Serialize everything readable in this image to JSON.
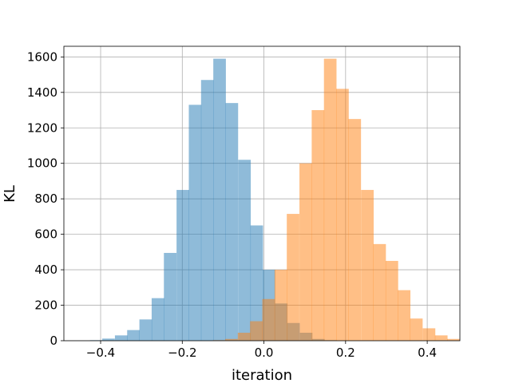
{
  "chart_data": {
    "type": "bar",
    "title": "",
    "xlabel": "iteration",
    "ylabel": "KL",
    "xlim": [
      -0.49,
      0.48
    ],
    "ylim": [
      0,
      1660
    ],
    "grid": true,
    "legend": "none",
    "x_ticks": [
      -0.4,
      -0.2,
      0.0,
      0.2,
      0.4
    ],
    "x_tick_labels": [
      "−0.4",
      "−0.2",
      "0.0",
      "0.2",
      "0.4"
    ],
    "y_ticks": [
      0,
      200,
      400,
      600,
      800,
      1000,
      1200,
      1400,
      1600
    ],
    "y_tick_labels": [
      "0",
      "200",
      "400",
      "600",
      "800",
      "1000",
      "1200",
      "1400",
      "1600"
    ],
    "series": [
      {
        "color": "#1f77b4",
        "opacity": 0.5,
        "bin_width": 0.0302,
        "bins": [
          {
            "x0": -0.426,
            "count": 3
          },
          {
            "x0": -0.396,
            "count": 12
          },
          {
            "x0": -0.365,
            "count": 30
          },
          {
            "x0": -0.335,
            "count": 60
          },
          {
            "x0": -0.305,
            "count": 120
          },
          {
            "x0": -0.275,
            "count": 240
          },
          {
            "x0": -0.245,
            "count": 495
          },
          {
            "x0": -0.214,
            "count": 850
          },
          {
            "x0": -0.184,
            "count": 1330
          },
          {
            "x0": -0.154,
            "count": 1470
          },
          {
            "x0": -0.124,
            "count": 1590
          },
          {
            "x0": -0.094,
            "count": 1340
          },
          {
            "x0": -0.063,
            "count": 1020
          },
          {
            "x0": -0.033,
            "count": 650
          },
          {
            "x0": -0.003,
            "count": 400
          },
          {
            "x0": 0.027,
            "count": 210
          },
          {
            "x0": 0.057,
            "count": 100
          },
          {
            "x0": 0.088,
            "count": 45
          },
          {
            "x0": 0.118,
            "count": 10
          },
          {
            "x0": 0.148,
            "count": 3
          }
        ]
      },
      {
        "color": "#ff7f0e",
        "opacity": 0.5,
        "bin_width": 0.0302,
        "bins": [
          {
            "x0": -0.125,
            "count": 3
          },
          {
            "x0": -0.095,
            "count": 10
          },
          {
            "x0": -0.064,
            "count": 45
          },
          {
            "x0": -0.034,
            "count": 110
          },
          {
            "x0": -0.004,
            "count": 235
          },
          {
            "x0": 0.026,
            "count": 400
          },
          {
            "x0": 0.056,
            "count": 715
          },
          {
            "x0": 0.087,
            "count": 1000
          },
          {
            "x0": 0.117,
            "count": 1300
          },
          {
            "x0": 0.147,
            "count": 1590
          },
          {
            "x0": 0.177,
            "count": 1420
          },
          {
            "x0": 0.207,
            "count": 1250
          },
          {
            "x0": 0.238,
            "count": 850
          },
          {
            "x0": 0.268,
            "count": 545
          },
          {
            "x0": 0.298,
            "count": 450
          },
          {
            "x0": 0.328,
            "count": 285
          },
          {
            "x0": 0.358,
            "count": 125
          },
          {
            "x0": 0.389,
            "count": 70
          },
          {
            "x0": 0.419,
            "count": 30
          },
          {
            "x0": 0.449,
            "count": 10
          }
        ]
      }
    ]
  }
}
